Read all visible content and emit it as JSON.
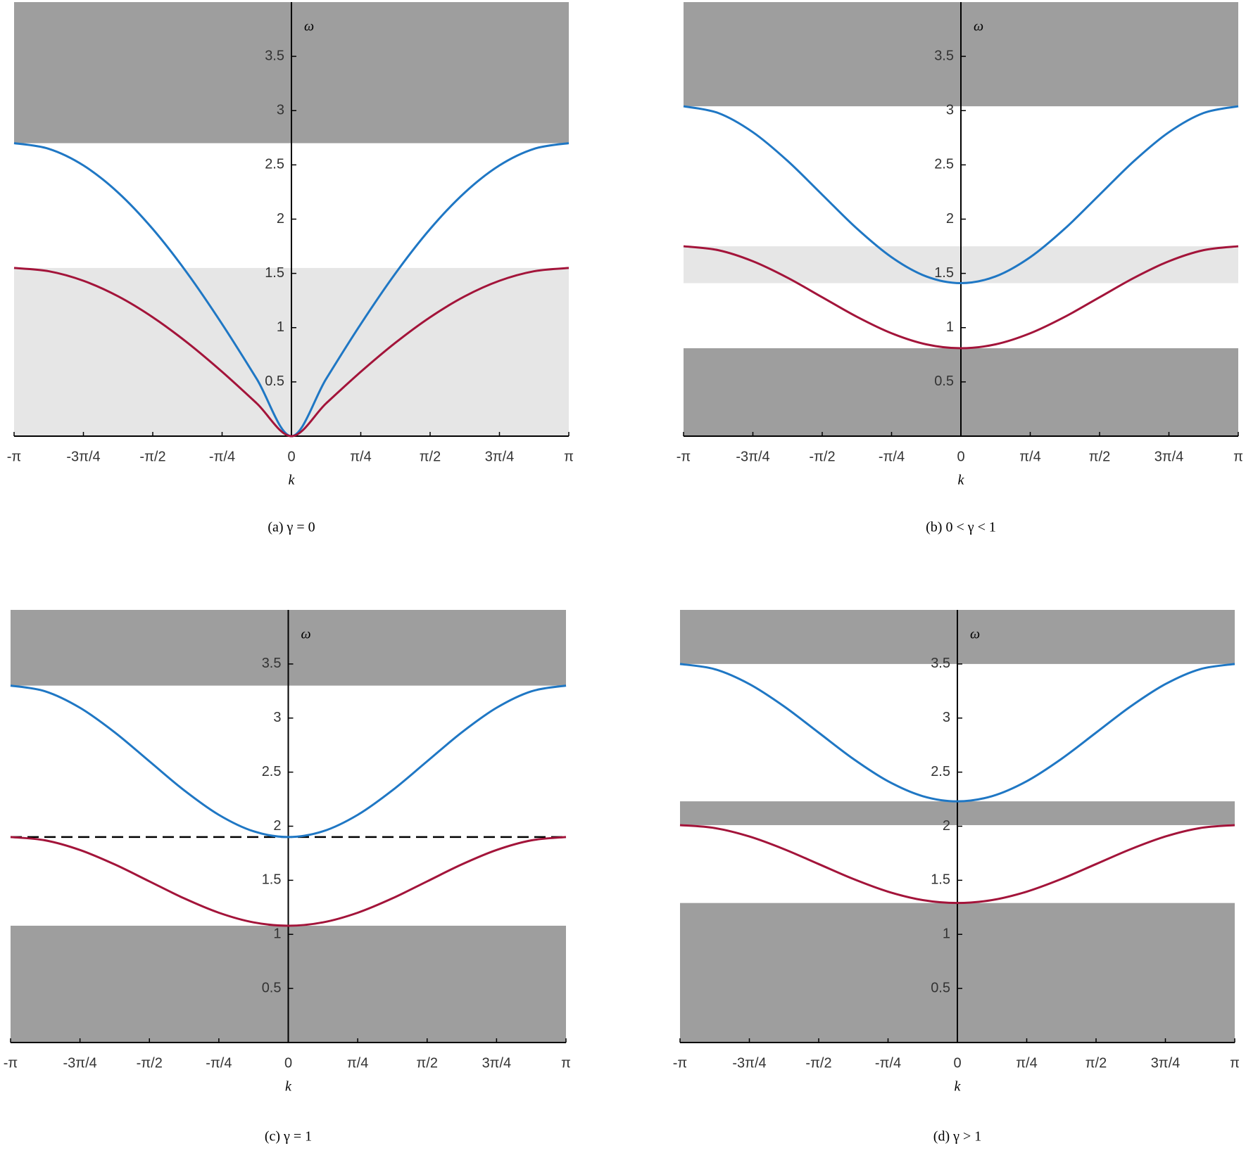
{
  "chart_data": [
    {
      "type": "line",
      "caption": "(a) γ = 0",
      "xlabel": "k",
      "ylabel": "ω",
      "x": [
        -3.1416,
        -2.7489,
        -2.3562,
        -1.9635,
        -1.5708,
        -1.1781,
        -0.7854,
        -0.3927,
        0,
        0.3927,
        0.7854,
        1.1781,
        1.5708,
        1.9635,
        2.3562,
        2.7489,
        3.1416
      ],
      "series": [
        {
          "color": "#1f77c4",
          "values": [
            2.7,
            2.648,
            2.495,
            2.245,
            1.909,
            1.5,
            1.033,
            0.527,
            0,
            0.527,
            1.033,
            1.5,
            1.909,
            2.245,
            2.495,
            2.648,
            2.7
          ]
        },
        {
          "color": "#a3143a",
          "values": [
            1.55,
            1.52,
            1.432,
            1.289,
            1.096,
            0.861,
            0.593,
            0.302,
            0,
            0.302,
            0.593,
            0.861,
            1.096,
            1.289,
            1.432,
            1.52,
            1.55
          ]
        }
      ],
      "bands": [
        {
          "range": [
            2.7,
            4
          ],
          "color": "#9e9e9e"
        },
        {
          "range": [
            0,
            1.55
          ],
          "color": "#e6e6e6"
        }
      ],
      "xlim": [
        -3.1416,
        3.1416
      ],
      "ylim": [
        0,
        4
      ],
      "xticks": [
        {
          "value": -3.1416,
          "label": "-π"
        },
        {
          "value": -2.3562,
          "label": "-3π/4"
        },
        {
          "value": -1.5708,
          "label": "-π/2"
        },
        {
          "value": -0.7854,
          "label": "-π/4"
        },
        0,
        {
          "value": 0.7854,
          "label": "π/4"
        },
        {
          "value": 1.5708,
          "label": "π/2"
        },
        {
          "value": 2.3562,
          "label": "3π/4"
        },
        {
          "value": 3.1416,
          "label": "π"
        }
      ],
      "yticks": [
        0.5,
        1,
        1.5,
        2,
        2.5,
        3,
        3.5
      ]
    },
    {
      "type": "line",
      "caption": "(b) 0 < γ < 1",
      "xlabel": "k",
      "ylabel": "ω",
      "x": [
        -3.1416,
        -2.7489,
        -2.3562,
        -1.9635,
        -1.5708,
        -1.1781,
        -0.7854,
        -0.3927,
        0,
        0.3927,
        0.7854,
        1.1781,
        1.5708,
        1.9635,
        2.3562,
        2.7489,
        3.1416
      ],
      "series": [
        {
          "color": "#1f77c4",
          "values": [
            3.04,
            2.978,
            2.801,
            2.537,
            2.225,
            1.913,
            1.649,
            1.472,
            1.41,
            1.472,
            1.649,
            1.913,
            2.225,
            2.537,
            2.801,
            2.978,
            3.04
          ]
        },
        {
          "color": "#a3143a",
          "values": [
            1.75,
            1.714,
            1.612,
            1.46,
            1.28,
            1.1,
            0.948,
            0.846,
            0.81,
            0.846,
            0.948,
            1.1,
            1.28,
            1.46,
            1.612,
            1.714,
            1.75
          ]
        }
      ],
      "bands": [
        {
          "range": [
            3.04,
            4
          ],
          "color": "#9e9e9e"
        },
        {
          "range": [
            1.41,
            1.75
          ],
          "color": "#e6e6e6"
        },
        {
          "range": [
            0,
            0.81
          ],
          "color": "#9e9e9e"
        }
      ],
      "xlim": [
        -3.1416,
        3.1416
      ],
      "ylim": [
        0,
        4
      ],
      "xticks": [
        {
          "value": -3.1416,
          "label": "-π"
        },
        {
          "value": -2.3562,
          "label": "-3π/4"
        },
        {
          "value": -1.5708,
          "label": "-π/2"
        },
        {
          "value": -0.7854,
          "label": "-π/4"
        },
        0,
        {
          "value": 0.7854,
          "label": "π/4"
        },
        {
          "value": 1.5708,
          "label": "π/2"
        },
        {
          "value": 2.3562,
          "label": "3π/4"
        },
        {
          "value": 3.1416,
          "label": "π"
        }
      ],
      "yticks": [
        0.5,
        1,
        1.5,
        2,
        2.5,
        3,
        3.5
      ]
    },
    {
      "type": "line",
      "caption": "(c) γ = 1",
      "xlabel": "k",
      "ylabel": "ω",
      "x": [
        -3.1416,
        -2.7489,
        -2.3562,
        -1.9635,
        -1.5708,
        -1.1781,
        -0.7854,
        -0.3927,
        0,
        0.3927,
        0.7854,
        1.1781,
        1.5708,
        1.9635,
        2.3562,
        2.7489,
        3.1416
      ],
      "series": [
        {
          "color": "#1f77c4",
          "values": [
            3.3,
            3.247,
            3.095,
            2.868,
            2.6,
            2.332,
            2.105,
            1.953,
            1.9,
            1.953,
            2.105,
            2.332,
            2.6,
            2.868,
            3.095,
            3.247,
            3.3
          ]
        },
        {
          "color": "#a3143a",
          "values": [
            1.9,
            1.869,
            1.78,
            1.647,
            1.49,
            1.333,
            1.2,
            1.111,
            1.08,
            1.111,
            1.2,
            1.333,
            1.49,
            1.647,
            1.78,
            1.869,
            1.9
          ]
        }
      ],
      "bands": [
        {
          "range": [
            3.3,
            4
          ],
          "color": "#9e9e9e"
        },
        {
          "range": [
            0,
            1.08
          ],
          "color": "#9e9e9e"
        }
      ],
      "reference_line": 1.9,
      "xlim": [
        -3.1416,
        3.1416
      ],
      "ylim": [
        0,
        4
      ],
      "xticks": [
        {
          "value": -3.1416,
          "label": "-π"
        },
        {
          "value": -2.3562,
          "label": "-3π/4"
        },
        {
          "value": -1.5708,
          "label": "-π/2"
        },
        {
          "value": -0.7854,
          "label": "-π/4"
        },
        0,
        {
          "value": 0.7854,
          "label": "π/4"
        },
        {
          "value": 1.5708,
          "label": "π/2"
        },
        {
          "value": 2.3562,
          "label": "3π/4"
        },
        {
          "value": 3.1416,
          "label": "π"
        }
      ],
      "yticks": [
        0.5,
        1,
        1.5,
        2,
        2.5,
        3,
        3.5
      ]
    },
    {
      "type": "line",
      "caption": "(d) γ > 1",
      "xlabel": "k",
      "ylabel": "ω",
      "x": [
        -3.1416,
        -2.7489,
        -2.3562,
        -1.9635,
        -1.5708,
        -1.1781,
        -0.7854,
        -0.3927,
        0,
        0.3927,
        0.7854,
        1.1781,
        1.5708,
        1.9635,
        2.3562,
        2.7489,
        3.1416
      ],
      "series": [
        {
          "color": "#1f77c4",
          "values": [
            3.5,
            3.452,
            3.314,
            3.108,
            2.865,
            2.622,
            2.416,
            2.278,
            2.23,
            2.278,
            2.416,
            2.622,
            2.865,
            3.108,
            3.314,
            3.452,
            3.5
          ]
        },
        {
          "color": "#a3143a",
          "values": [
            2.01,
            1.983,
            1.905,
            1.788,
            1.65,
            1.512,
            1.395,
            1.317,
            1.29,
            1.317,
            1.395,
            1.512,
            1.65,
            1.788,
            1.905,
            1.983,
            2.01
          ]
        }
      ],
      "bands": [
        {
          "range": [
            3.5,
            4
          ],
          "color": "#9e9e9e"
        },
        {
          "range": [
            2.01,
            2.23
          ],
          "color": "#9e9e9e"
        },
        {
          "range": [
            0,
            1.29
          ],
          "color": "#9e9e9e"
        }
      ],
      "xlim": [
        -3.1416,
        3.1416
      ],
      "ylim": [
        0,
        4
      ],
      "xticks": [
        {
          "value": -3.1416,
          "label": "-π"
        },
        {
          "value": -2.3562,
          "label": "-3π/4"
        },
        {
          "value": -1.5708,
          "label": "-π/2"
        },
        {
          "value": -0.7854,
          "label": "-π/4"
        },
        0,
        {
          "value": 0.7854,
          "label": "π/4"
        },
        {
          "value": 1.5708,
          "label": "π/2"
        },
        {
          "value": 2.3562,
          "label": "3π/4"
        },
        {
          "value": 3.1416,
          "label": "π"
        }
      ],
      "yticks": [
        0.5,
        1,
        1.5,
        2,
        2.5,
        3,
        3.5
      ]
    }
  ]
}
